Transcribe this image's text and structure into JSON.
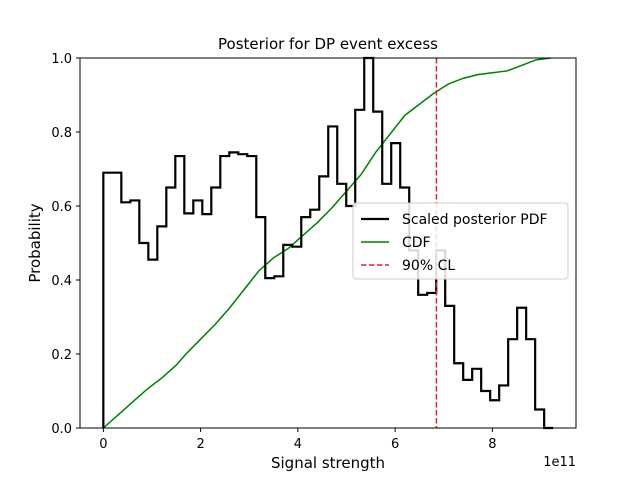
{
  "chart_data": {
    "type": "step",
    "title": "Posterior for DP event excess",
    "xlabel": "Signal strength",
    "ylabel": "Probability",
    "x_offset_label": "1e11",
    "xlim": [
      -0.48,
      9.72
    ],
    "ylim": [
      0,
      1.0
    ],
    "x_scale_factor": 100000000000.0,
    "x_ticks": [
      0,
      2,
      4,
      6,
      8
    ],
    "x_tick_labels": [
      "0",
      "2",
      "4",
      "6",
      "8"
    ],
    "y_ticks": [
      0,
      0.2,
      0.4,
      0.6,
      0.8,
      1.0
    ],
    "y_tick_labels": [
      "0.0",
      "0.2",
      "0.4",
      "0.6",
      "0.8",
      "1.0"
    ],
    "grid": false,
    "legend_position": "center-right",
    "colors": {
      "pdf": "#000000",
      "cdf": "#008000",
      "cl": "#d62728"
    },
    "series": [
      {
        "name": "Scaled posterior PDF",
        "kind": "step-histogram",
        "bin_edges": [
          0,
          0.185,
          0.37,
          0.555,
          0.74,
          0.925,
          1.11,
          1.295,
          1.48,
          1.665,
          1.85,
          2.035,
          2.22,
          2.405,
          2.59,
          2.775,
          2.96,
          3.145,
          3.33,
          3.515,
          3.7,
          3.885,
          4.07,
          4.255,
          4.44,
          4.625,
          4.81,
          4.995,
          5.18,
          5.365,
          5.55,
          5.735,
          5.92,
          6.105,
          6.29,
          6.475,
          6.66,
          6.845,
          7.03,
          7.215,
          7.4,
          7.585,
          7.77,
          7.955,
          8.14,
          8.325,
          8.51,
          8.695,
          8.88,
          9.065,
          9.25
        ],
        "values": [
          0.69,
          0.69,
          0.61,
          0.615,
          0.5,
          0.455,
          0.545,
          0.65,
          0.735,
          0.58,
          0.615,
          0.578,
          0.65,
          0.735,
          0.745,
          0.74,
          0.735,
          0.57,
          0.405,
          0.41,
          0.495,
          0.49,
          0.57,
          0.59,
          0.68,
          0.815,
          0.66,
          0.6,
          0.86,
          1.0,
          0.855,
          0.66,
          0.77,
          0.65,
          0.48,
          0.36,
          0.365,
          0.48,
          0.33,
          0.175,
          0.13,
          0.16,
          0.1,
          0.075,
          0.115,
          0.24,
          0.325,
          0.24,
          0.05,
          0.0
        ]
      },
      {
        "name": "CDF",
        "kind": "line",
        "x": [
          0,
          0.3,
          0.6,
          0.9,
          1.2,
          1.5,
          1.7,
          2.0,
          2.3,
          2.6,
          2.9,
          3.2,
          3.5,
          3.8,
          4.1,
          4.4,
          4.7,
          5.0,
          5.3,
          5.6,
          5.9,
          6.2,
          6.5,
          6.8,
          7.1,
          7.4,
          7.7,
          8.0,
          8.3,
          8.6,
          8.9,
          9.2
        ],
        "y": [
          0,
          0.035,
          0.07,
          0.105,
          0.135,
          0.17,
          0.2,
          0.24,
          0.28,
          0.325,
          0.375,
          0.425,
          0.46,
          0.485,
          0.52,
          0.555,
          0.595,
          0.64,
          0.685,
          0.745,
          0.795,
          0.845,
          0.875,
          0.905,
          0.93,
          0.945,
          0.955,
          0.96,
          0.965,
          0.98,
          0.995,
          1.0
        ]
      },
      {
        "name": "90% CL",
        "kind": "vline",
        "x": 6.85
      }
    ]
  }
}
